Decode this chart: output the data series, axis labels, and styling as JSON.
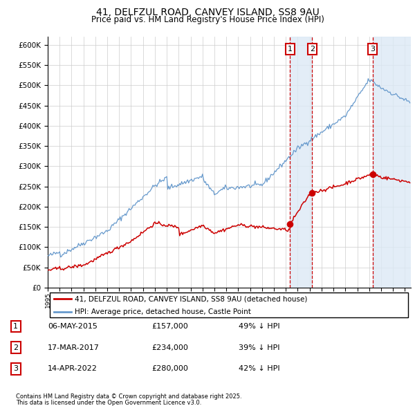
{
  "title": "41, DELFZUL ROAD, CANVEY ISLAND, SS8 9AU",
  "subtitle": "Price paid vs. HM Land Registry's House Price Index (HPI)",
  "legend_line1": "41, DELFZUL ROAD, CANVEY ISLAND, SS8 9AU (detached house)",
  "legend_line2": "HPI: Average price, detached house, Castle Point",
  "footnote1": "Contains HM Land Registry data © Crown copyright and database right 2025.",
  "footnote2": "This data is licensed under the Open Government Licence v3.0.",
  "transactions": [
    {
      "num": 1,
      "date": "06-MAY-2015",
      "price": 157000,
      "pct": "49% ↓ HPI",
      "x_year": 2015.35
    },
    {
      "num": 2,
      "date": "17-MAR-2017",
      "price": 234000,
      "pct": "39% ↓ HPI",
      "x_year": 2017.21
    },
    {
      "num": 3,
      "date": "14-APR-2022",
      "price": 280000,
      "pct": "42% ↓ HPI",
      "x_year": 2022.29
    }
  ],
  "red_color": "#cc0000",
  "blue_color": "#6699cc",
  "blue_shade": "#dce9f5",
  "grid_color": "#cccccc",
  "background_color": "#ffffff",
  "ylim": [
    0,
    620000
  ],
  "xlim_start": 1995.0,
  "xlim_end": 2025.5
}
